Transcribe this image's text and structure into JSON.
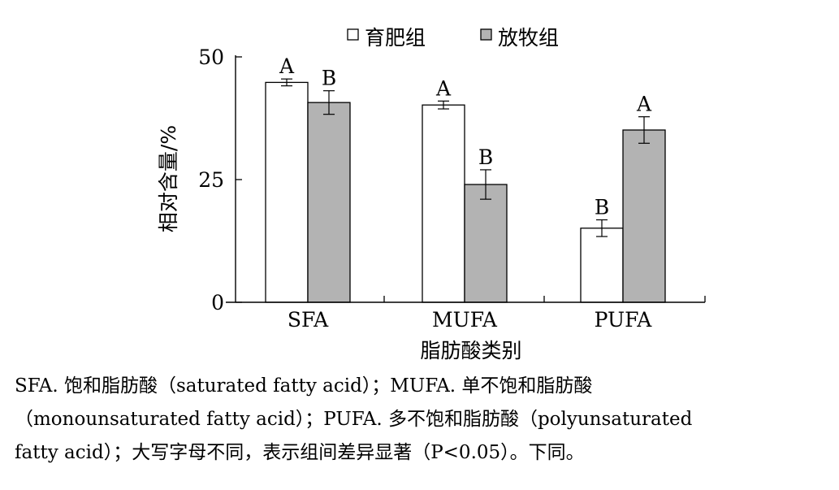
{
  "chart_data": {
    "type": "bar",
    "categories": [
      "SFA",
      "MUFA",
      "PUFA"
    ],
    "series": [
      {
        "name": "育肥组",
        "values": [
          44.8,
          40.2,
          15.1
        ],
        "errors": [
          0.7,
          0.8,
          1.7
        ],
        "letters": [
          "A",
          "A",
          "B"
        ],
        "color": "#ffffff"
      },
      {
        "name": "放牧组",
        "values": [
          40.7,
          24.0,
          35.1
        ],
        "errors": [
          2.4,
          3.0,
          2.7
        ],
        "letters": [
          "B",
          "B",
          "A"
        ],
        "color": "#b3b3b3"
      }
    ],
    "xlabel": "脂肪酸类别",
    "ylabel": "相对含量/%",
    "ylim": [
      0,
      50
    ],
    "yticks": [
      0,
      25,
      50
    ],
    "ytick_labels": [
      "0",
      "25",
      "50"
    ],
    "grid": false,
    "legend_position": "top"
  },
  "legend": {
    "marker_fattening": "□",
    "marker_grazing": "■"
  },
  "caption": {
    "line1": "SFA. 饱和脂肪酸（saturated fatty acid）；MUFA. 单不饱和脂肪酸",
    "line2": "（monounsaturated fatty acid）；PUFA. 多不饱和脂肪酸（polyunsaturated",
    "line3": "fatty acid）；大写字母不同，表示组间差异显著（P<0.05）。下同。"
  }
}
